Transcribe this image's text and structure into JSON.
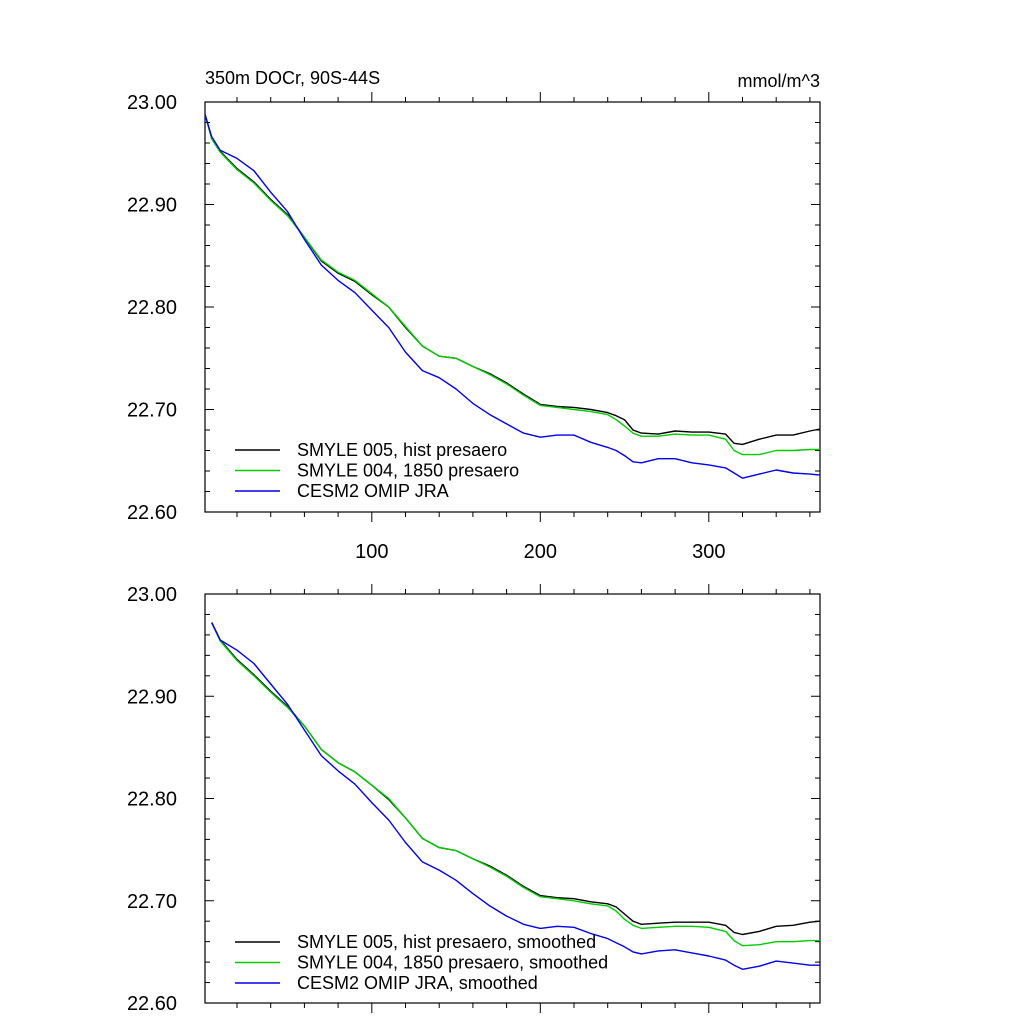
{
  "figure": {
    "title_left": "350m DOCr, 90S-44S",
    "title_right": "mmol/m^3"
  },
  "chart_data": [
    {
      "type": "line",
      "title": "350m DOCr, 90S-44S",
      "units": "mmol/m^3",
      "xlim": [
        1,
        366
      ],
      "ylim": [
        22.6,
        23.0
      ],
      "x_ticks": [
        100,
        200,
        300
      ],
      "x_tick_labels": [
        "100",
        "200",
        "300"
      ],
      "y_ticks": [
        22.6,
        22.7,
        22.8,
        22.9,
        23.0
      ],
      "y_tick_labels": [
        "22.60",
        "22.70",
        "22.80",
        "22.90",
        "23.00"
      ],
      "grid": false,
      "legend_position": "bottom-left",
      "series": [
        {
          "name": "SMYLE 005, hist presaero",
          "color": "#000000",
          "x": [
            1,
            5,
            10,
            20,
            30,
            40,
            50,
            60,
            70,
            80,
            90,
            100,
            110,
            120,
            130,
            140,
            150,
            160,
            170,
            180,
            190,
            200,
            210,
            220,
            230,
            240,
            245,
            250,
            255,
            260,
            270,
            280,
            290,
            300,
            310,
            315,
            320,
            330,
            340,
            350,
            360,
            366
          ],
          "y": [
            22.988,
            22.965,
            22.952,
            22.935,
            22.922,
            22.905,
            22.89,
            22.868,
            22.845,
            22.833,
            22.825,
            22.812,
            22.8,
            22.78,
            22.762,
            22.752,
            22.75,
            22.742,
            22.735,
            22.726,
            22.715,
            22.705,
            22.703,
            22.702,
            22.7,
            22.697,
            22.694,
            22.69,
            22.68,
            22.677,
            22.676,
            22.679,
            22.678,
            22.678,
            22.676,
            22.667,
            22.666,
            22.671,
            22.675,
            22.675,
            22.679,
            22.681
          ]
        },
        {
          "name": "SMYLE 004, 1850 presaero",
          "color": "#00cc00",
          "x": [
            1,
            5,
            10,
            20,
            30,
            40,
            50,
            60,
            70,
            80,
            90,
            100,
            110,
            120,
            130,
            140,
            150,
            160,
            170,
            180,
            190,
            200,
            210,
            220,
            230,
            240,
            245,
            250,
            255,
            260,
            270,
            280,
            290,
            300,
            310,
            315,
            320,
            330,
            340,
            350,
            360,
            366
          ],
          "y": [
            22.988,
            22.964,
            22.951,
            22.934,
            22.921,
            22.904,
            22.889,
            22.868,
            22.846,
            22.834,
            22.826,
            22.813,
            22.8,
            22.781,
            22.762,
            22.752,
            22.75,
            22.742,
            22.734,
            22.725,
            22.714,
            22.704,
            22.702,
            22.7,
            22.698,
            22.695,
            22.69,
            22.684,
            22.677,
            22.674,
            22.674,
            22.676,
            22.675,
            22.675,
            22.671,
            22.66,
            22.656,
            22.656,
            22.66,
            22.66,
            22.661,
            22.661
          ]
        },
        {
          "name": "CESM2 OMIP JRA",
          "color": "#0000ee",
          "x": [
            1,
            5,
            10,
            20,
            30,
            40,
            50,
            60,
            70,
            80,
            90,
            100,
            110,
            120,
            130,
            140,
            150,
            160,
            170,
            180,
            190,
            200,
            210,
            220,
            230,
            240,
            245,
            250,
            255,
            260,
            270,
            280,
            290,
            300,
            310,
            315,
            320,
            330,
            340,
            350,
            360,
            366
          ],
          "y": [
            22.988,
            22.966,
            22.953,
            22.945,
            22.933,
            22.912,
            22.893,
            22.866,
            22.841,
            22.826,
            22.814,
            22.797,
            22.78,
            22.756,
            22.738,
            22.731,
            22.72,
            22.706,
            22.695,
            22.686,
            22.677,
            22.673,
            22.675,
            22.675,
            22.668,
            22.663,
            22.66,
            22.655,
            22.649,
            22.648,
            22.652,
            22.652,
            22.648,
            22.646,
            22.643,
            22.638,
            22.633,
            22.637,
            22.641,
            22.638,
            22.637,
            22.636
          ]
        }
      ]
    },
    {
      "type": "line",
      "xlim": [
        1,
        366
      ],
      "ylim": [
        22.6,
        23.0
      ],
      "x_ticks": [
        100,
        200,
        300
      ],
      "x_tick_labels": [],
      "y_ticks": [
        22.6,
        22.7,
        22.8,
        22.9,
        23.0
      ],
      "y_tick_labels": [
        "22.60",
        "22.70",
        "22.80",
        "22.90",
        "23.00"
      ],
      "grid": false,
      "legend_position": "bottom-left",
      "series": [
        {
          "name": "SMYLE 005, hist presaero, smoothed",
          "color": "#000000",
          "x": [
            5,
            10,
            20,
            30,
            40,
            50,
            60,
            70,
            80,
            90,
            100,
            110,
            120,
            130,
            140,
            150,
            160,
            170,
            180,
            190,
            200,
            210,
            220,
            230,
            240,
            245,
            250,
            255,
            260,
            270,
            280,
            290,
            300,
            310,
            315,
            320,
            330,
            340,
            350,
            360,
            366
          ],
          "y": [
            22.972,
            22.955,
            22.936,
            22.921,
            22.905,
            22.89,
            22.871,
            22.848,
            22.835,
            22.826,
            22.813,
            22.799,
            22.781,
            22.761,
            22.752,
            22.749,
            22.741,
            22.734,
            22.725,
            22.714,
            22.705,
            22.703,
            22.702,
            22.699,
            22.697,
            22.694,
            22.687,
            22.68,
            22.677,
            22.678,
            22.679,
            22.679,
            22.679,
            22.676,
            22.669,
            22.667,
            22.67,
            22.675,
            22.676,
            22.679,
            22.68
          ]
        },
        {
          "name": "SMYLE 004, 1850 presaero, smoothed",
          "color": "#00cc00",
          "x": [
            5,
            10,
            20,
            30,
            40,
            50,
            60,
            70,
            80,
            90,
            100,
            110,
            120,
            130,
            140,
            150,
            160,
            170,
            180,
            190,
            200,
            210,
            220,
            230,
            240,
            245,
            250,
            255,
            260,
            270,
            280,
            290,
            300,
            310,
            315,
            320,
            330,
            340,
            350,
            360,
            366
          ],
          "y": [
            22.972,
            22.954,
            22.935,
            22.92,
            22.904,
            22.889,
            22.871,
            22.848,
            22.835,
            22.826,
            22.813,
            22.8,
            22.781,
            22.761,
            22.752,
            22.749,
            22.741,
            22.733,
            22.724,
            22.713,
            22.704,
            22.702,
            22.7,
            22.697,
            22.695,
            22.69,
            22.682,
            22.676,
            22.673,
            22.674,
            22.675,
            22.675,
            22.674,
            22.67,
            22.661,
            22.656,
            22.657,
            22.66,
            22.66,
            22.661,
            22.661
          ]
        },
        {
          "name": "CESM2 OMIP JRA, smoothed",
          "color": "#0000ee",
          "x": [
            5,
            10,
            20,
            30,
            40,
            50,
            60,
            70,
            80,
            90,
            100,
            110,
            120,
            130,
            140,
            150,
            160,
            170,
            180,
            190,
            200,
            210,
            220,
            230,
            240,
            245,
            250,
            255,
            260,
            270,
            280,
            290,
            300,
            310,
            315,
            320,
            330,
            340,
            350,
            360,
            366
          ],
          "y": [
            22.972,
            22.955,
            22.945,
            22.932,
            22.912,
            22.892,
            22.867,
            22.842,
            22.827,
            22.814,
            22.796,
            22.779,
            22.757,
            22.738,
            22.73,
            22.72,
            22.707,
            22.695,
            22.685,
            22.677,
            22.673,
            22.675,
            22.674,
            22.668,
            22.663,
            22.659,
            22.655,
            22.65,
            22.648,
            22.651,
            22.652,
            22.649,
            22.646,
            22.642,
            22.637,
            22.633,
            22.636,
            22.641,
            22.639,
            22.637,
            22.637
          ]
        }
      ]
    }
  ]
}
